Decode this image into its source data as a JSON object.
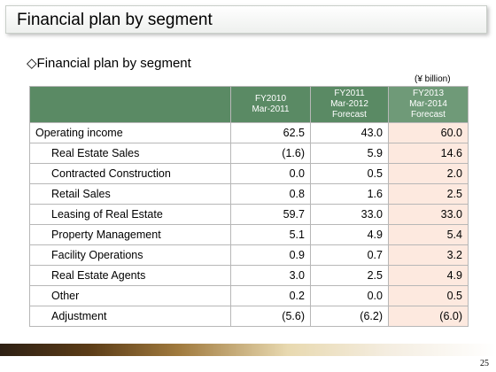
{
  "slide": {
    "title": "Financial plan by segment",
    "subtitle": "◇Financial plan by segment",
    "unit": "(¥ billion)",
    "page_number": "25"
  },
  "table": {
    "headers": [
      {
        "line1": "FY2010",
        "line2": "Mar-2011",
        "line3": ""
      },
      {
        "line1": "FY2011",
        "line2": "Mar-2012",
        "line3": "Forecast"
      },
      {
        "line1": "FY2013",
        "line2": "Mar-2014",
        "line3": "Forecast"
      }
    ],
    "rows": [
      {
        "label": "Operating income",
        "v1": "62.5",
        "v2": "43.0",
        "v3": "60.0"
      },
      {
        "label": "Real Estate Sales",
        "v1": "(1.6)",
        "v2": "5.9",
        "v3": "14.6"
      },
      {
        "label": "Contracted Construction",
        "v1": "0.0",
        "v2": "0.5",
        "v3": "2.0"
      },
      {
        "label": "Retail Sales",
        "v1": "0.8",
        "v2": "1.6",
        "v3": "2.5"
      },
      {
        "label": "Leasing of Real Estate",
        "v1": "59.7",
        "v2": "33.0",
        "v3": "33.0"
      },
      {
        "label": "Property Management",
        "v1": "5.1",
        "v2": "4.9",
        "v3": "5.4"
      },
      {
        "label": "Facility Operations",
        "v1": "0.9",
        "v2": "0.7",
        "v3": "3.2"
      },
      {
        "label": "Real Estate Agents",
        "v1": "3.0",
        "v2": "2.5",
        "v3": "4.9"
      },
      {
        "label": "Other",
        "v1": "0.2",
        "v2": "0.0",
        "v3": "0.5"
      },
      {
        "label": "Adjustment",
        "v1": "(5.6)",
        "v2": "(6.2)",
        "v3": "(6.0)"
      }
    ]
  },
  "colors": {
    "header_green": "#5a8a64",
    "forecast_highlight": "#fde9df"
  }
}
